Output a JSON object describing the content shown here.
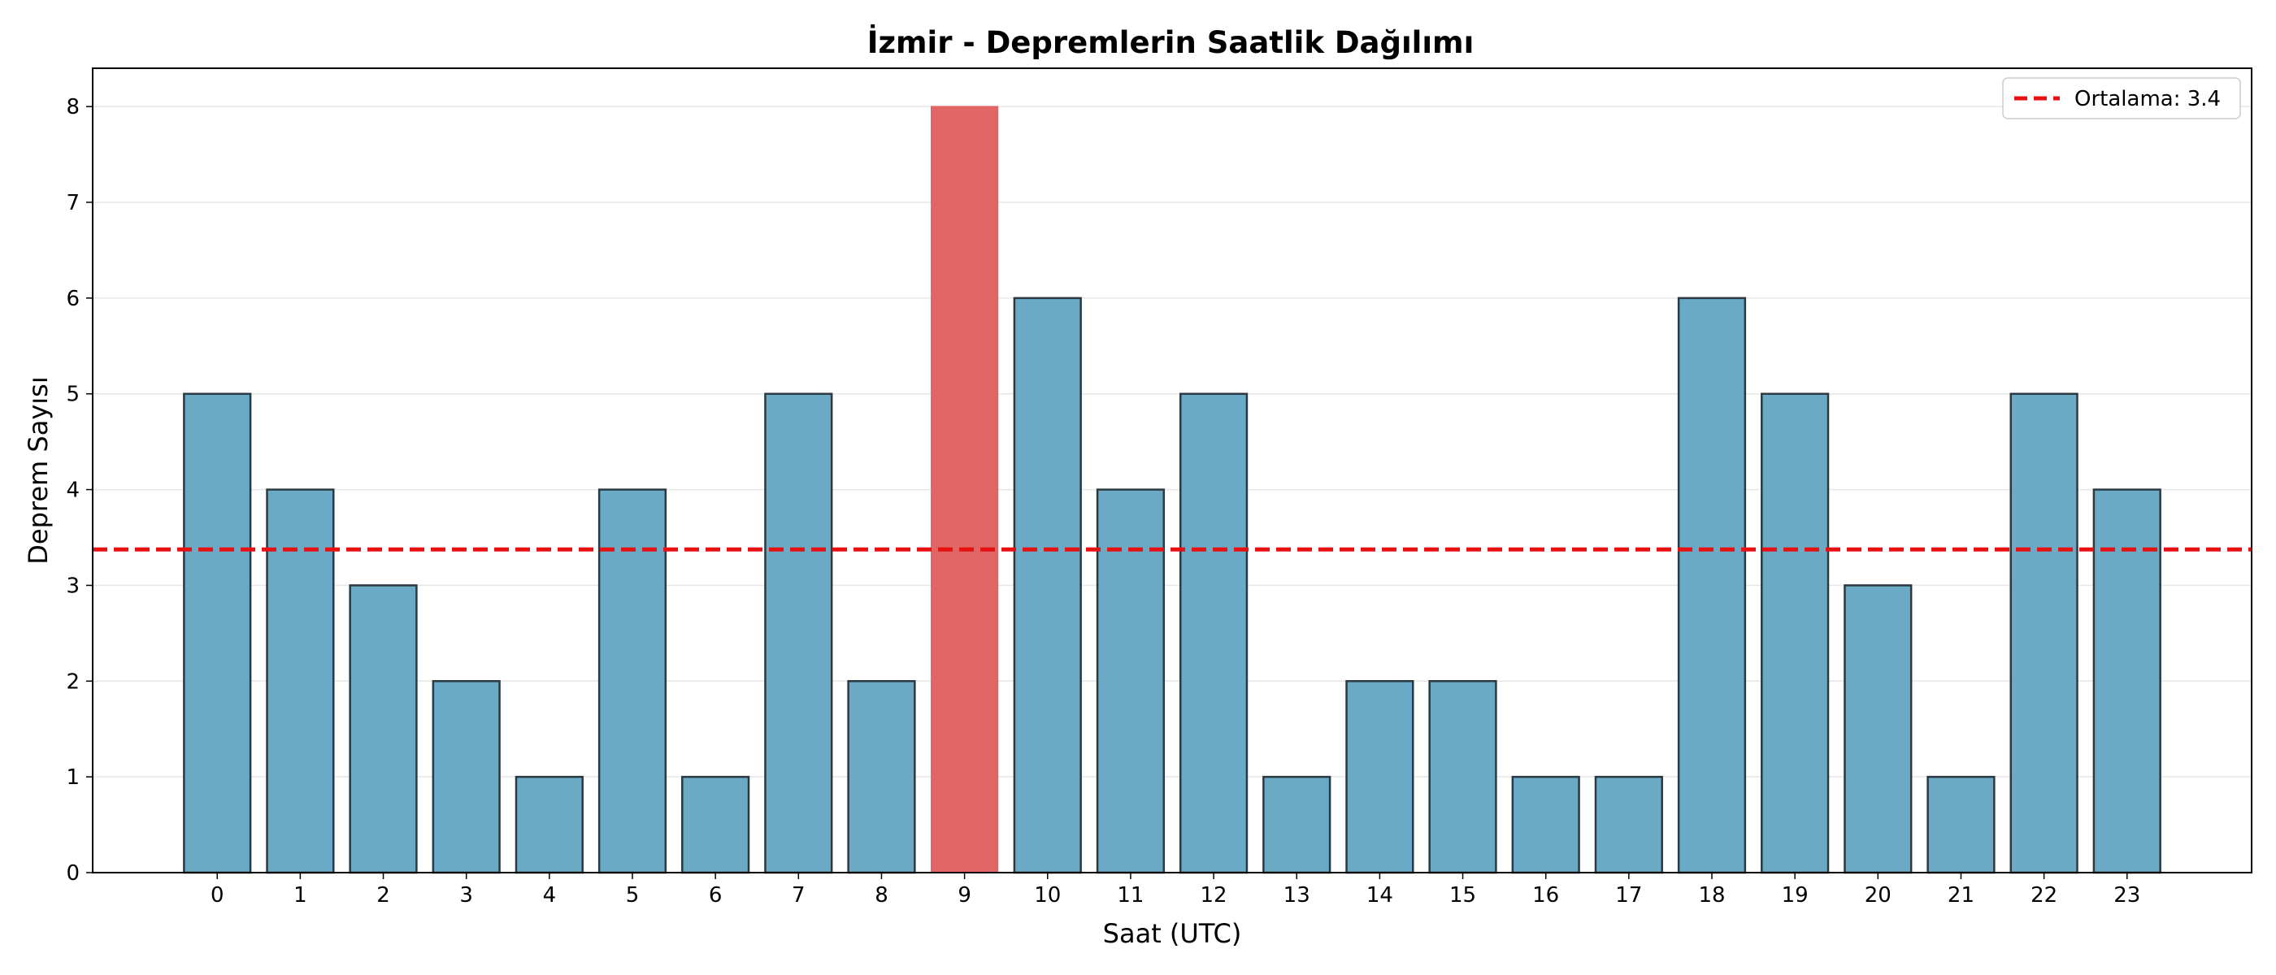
{
  "chart_data": {
    "type": "bar",
    "title": "İzmir - Depremlerin Saatlik Dağılımı",
    "xlabel": "Saat (UTC)",
    "ylabel": "Deprem Sayısı",
    "categories": [
      "0",
      "1",
      "2",
      "3",
      "4",
      "5",
      "6",
      "7",
      "8",
      "9",
      "10",
      "11",
      "12",
      "13",
      "14",
      "15",
      "16",
      "17",
      "18",
      "19",
      "20",
      "21",
      "22",
      "23"
    ],
    "values": [
      5,
      4,
      3,
      2,
      1,
      4,
      1,
      5,
      2,
      8,
      6,
      4,
      5,
      1,
      2,
      2,
      1,
      1,
      6,
      5,
      3,
      1,
      5,
      4
    ],
    "highlight_index": 9,
    "ylim": [
      0,
      8.4
    ],
    "yticks": [
      0,
      1,
      2,
      3,
      4,
      5,
      6,
      7,
      8
    ],
    "mean_line": {
      "value": 3.375,
      "label": "Ortalama: 3.4"
    },
    "grid": "y",
    "legend_position": "top-right",
    "colors": {
      "bar": "#6aaac6",
      "bar_highlight": "#e06666",
      "bar_edge": "#2b3a42",
      "mean_line": "#e81010",
      "grid": "#e6e6e6"
    }
  }
}
